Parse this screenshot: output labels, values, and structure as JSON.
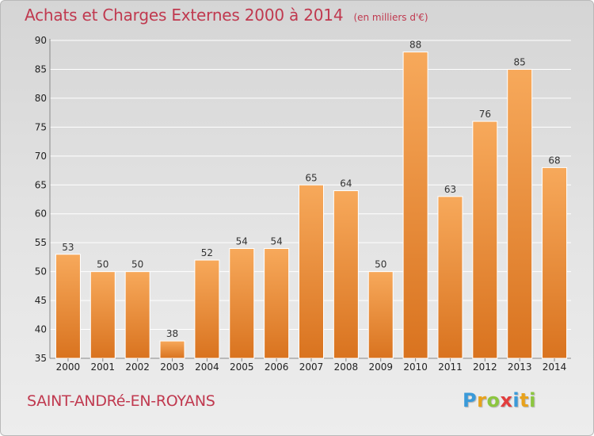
{
  "header": {
    "title": "Achats et Charges Externes 2000 à 2014",
    "unit": "(en milliers d'€)"
  },
  "footer": {
    "commune": "SAINT-ANDRé-EN-ROYANS",
    "logo": {
      "text": "Proxiti",
      "letters": [
        {
          "char": "P",
          "color": "#3a9ad9"
        },
        {
          "char": "r",
          "color": "#e8a21c"
        },
        {
          "char": "o",
          "color": "#8cc63f"
        },
        {
          "char": "x",
          "color": "#e23d3d"
        },
        {
          "char": "i",
          "color": "#3a9ad9"
        },
        {
          "char": "t",
          "color": "#e8a21c"
        },
        {
          "char": "i",
          "color": "#8cc63f"
        }
      ]
    }
  },
  "colors": {
    "title": "#c0394f",
    "bar_light": "#f7a95b",
    "bar_dark": "#d9731f",
    "grid": "#ffffff",
    "axis": "#888888"
  },
  "chart_data": {
    "type": "bar",
    "title": "Achats et Charges Externes 2000 à 2014",
    "subtitle": "(en milliers d'€)",
    "xlabel": "",
    "ylabel": "",
    "categories": [
      "2000",
      "2001",
      "2002",
      "2003",
      "2004",
      "2005",
      "2006",
      "2007",
      "2008",
      "2009",
      "2010",
      "2011",
      "2012",
      "2013",
      "2014"
    ],
    "values": [
      53,
      50,
      50,
      38,
      52,
      54,
      54,
      65,
      64,
      50,
      88,
      63,
      76,
      85,
      68
    ],
    "ylim": [
      35,
      90
    ],
    "yticks": [
      35,
      40,
      45,
      50,
      55,
      60,
      65,
      70,
      75,
      80,
      85,
      90
    ],
    "grid": true,
    "legend": "none"
  }
}
